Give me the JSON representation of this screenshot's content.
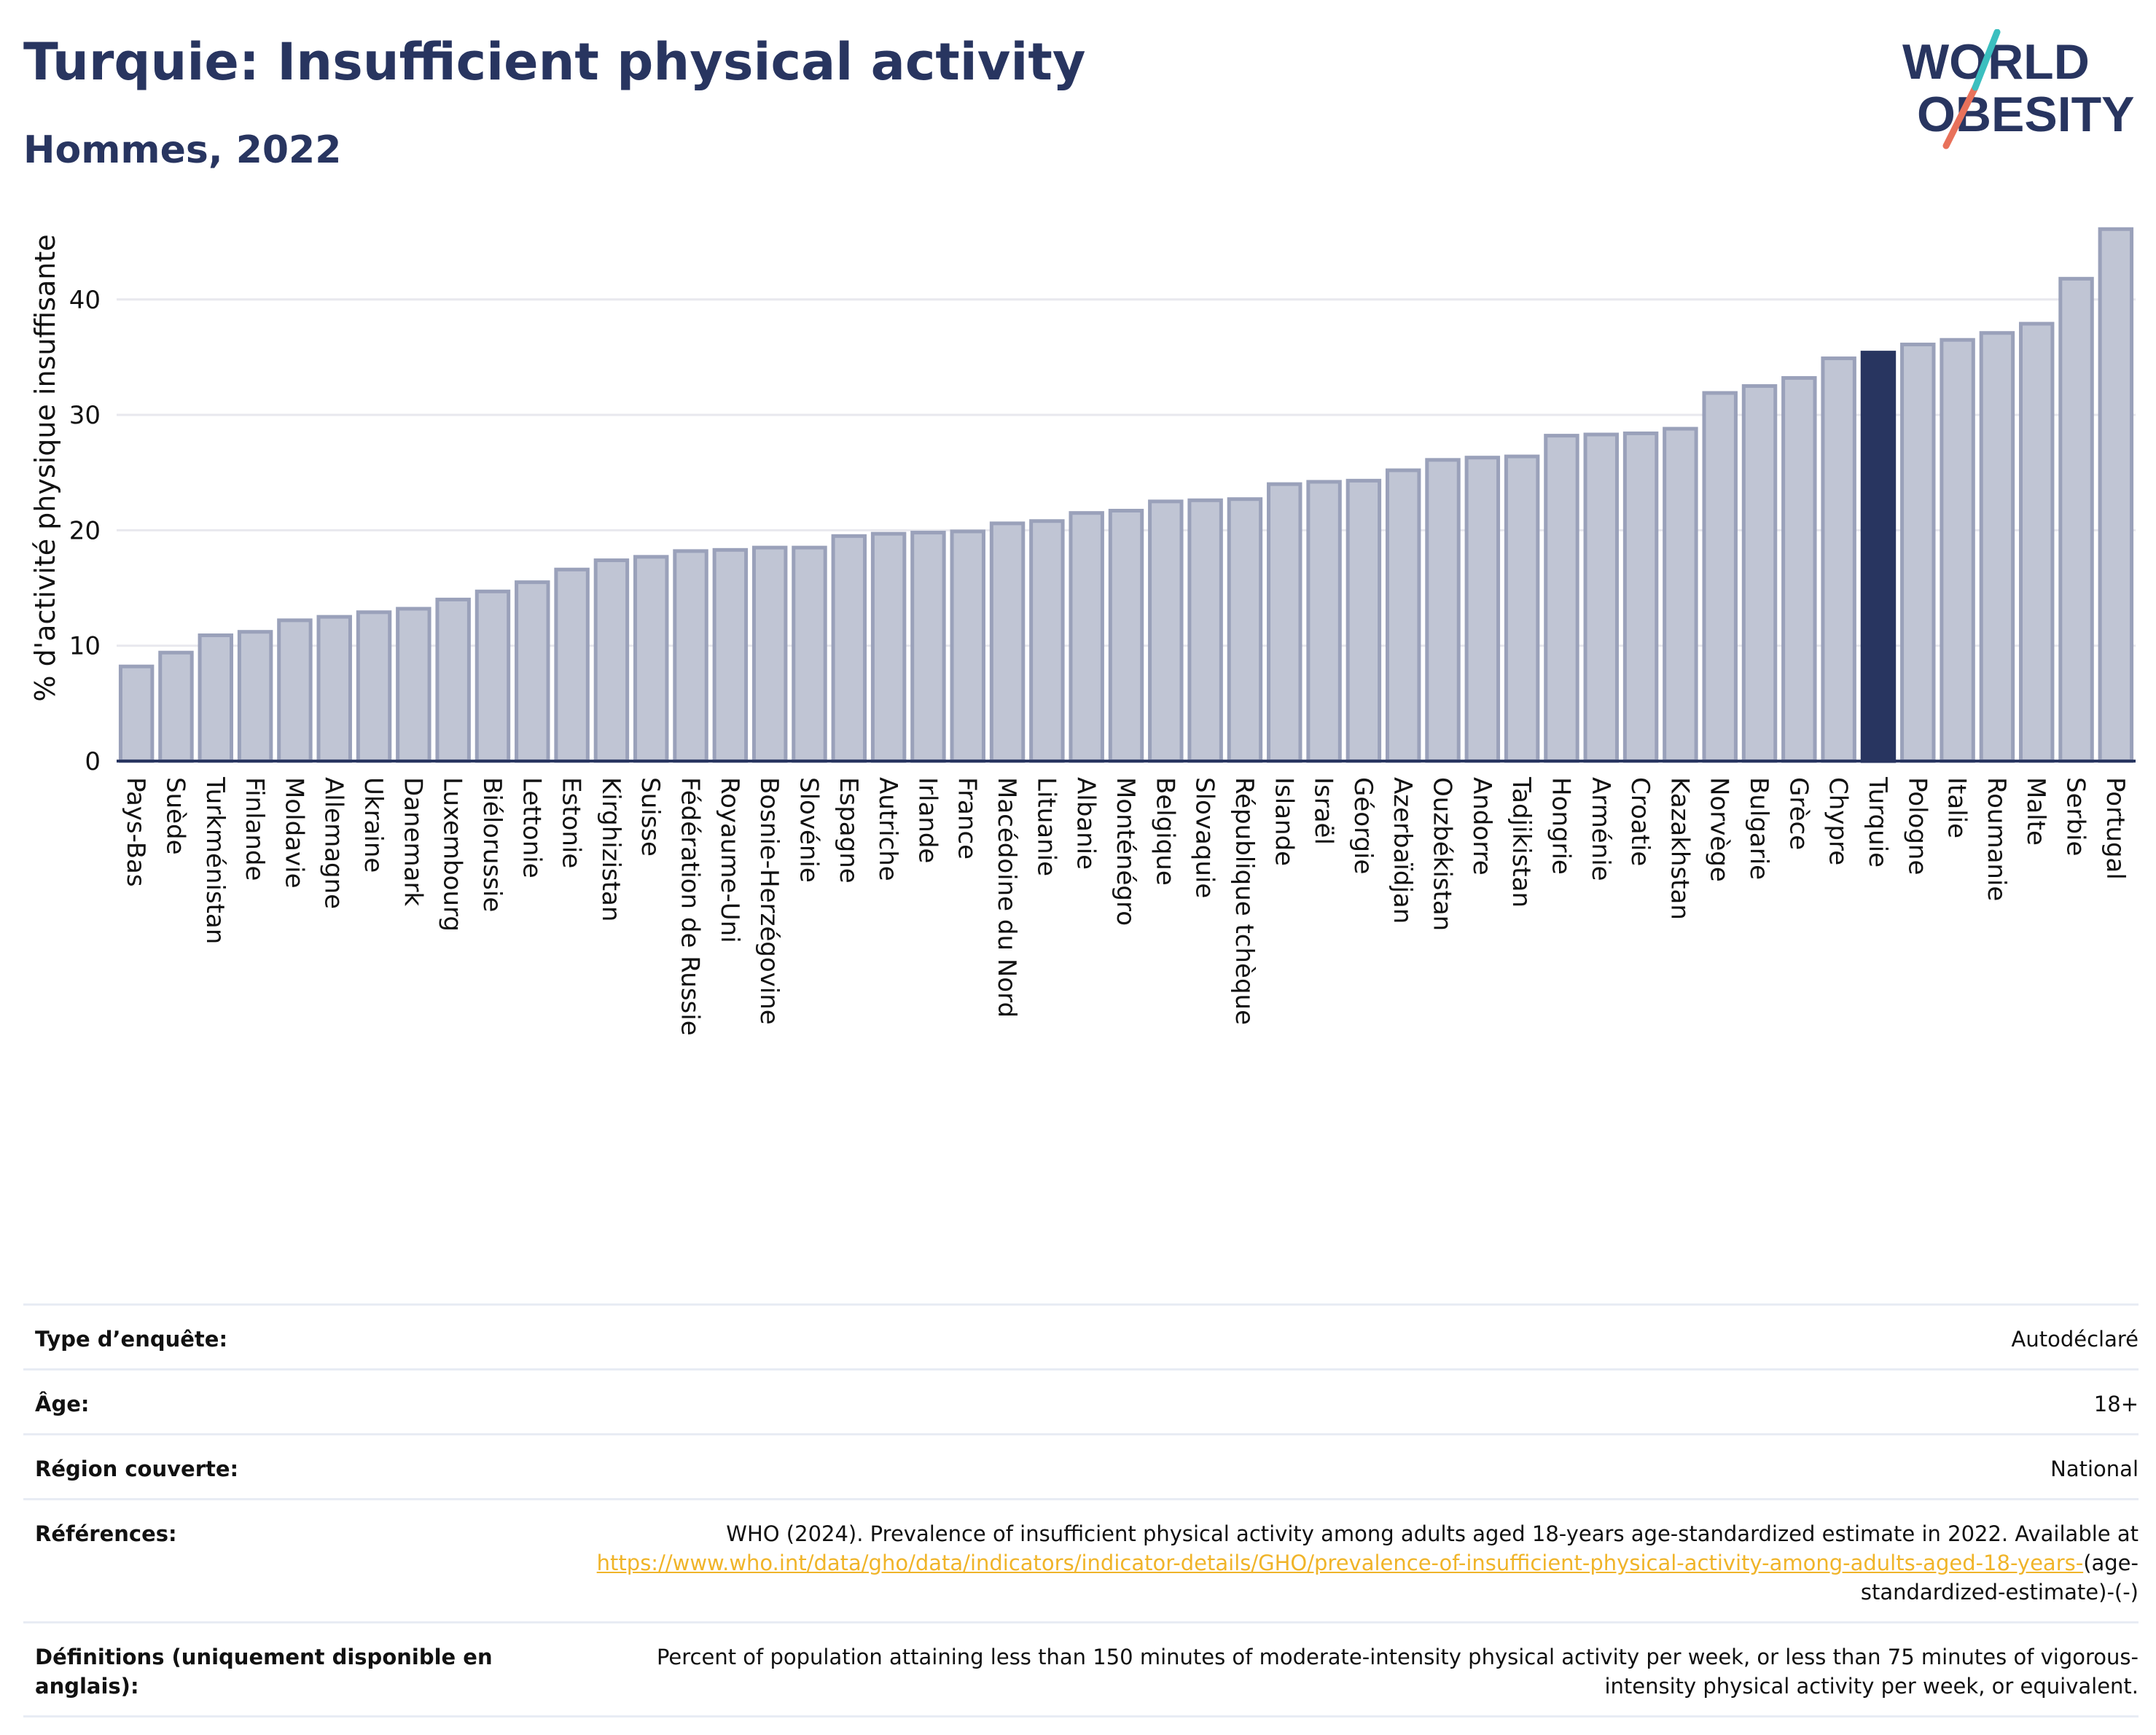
{
  "header": {
    "title": "Turquie: Insufficient physical activity",
    "subtitle": "Hommes, 2022"
  },
  "logo": {
    "line1": "WORLD",
    "line2": "OBESITY"
  },
  "colors": {
    "bar": "#c0c5d4",
    "bar_stroke": "#9aa1ba",
    "highlight": "#283560",
    "grid": "#e8e8ee",
    "axis": "#283560",
    "logo_teal": "#3bbfbf",
    "logo_coral": "#e8715a",
    "link": "#f0b429"
  },
  "chart_data": {
    "type": "bar",
    "ylabel": "% d'activité physique insuffisante",
    "ylim": [
      0,
      47
    ],
    "yticks": [
      0,
      10,
      20,
      30,
      40
    ],
    "grid": true,
    "highlight": "Turquie",
    "categories": [
      "Pays-Bas",
      "Suède",
      "Turkménistan",
      "Finlande",
      "Moldavie",
      "Allemagne",
      "Ukraine",
      "Danemark",
      "Luxembourg",
      "Biélorussie",
      "Lettonie",
      "Estonie",
      "Kirghizistan",
      "Suisse",
      "Fédération de Russie",
      "Royaume-Uni",
      "Bosnie-Herzégovine",
      "Slovénie",
      "Espagne",
      "Autriche",
      "Irlande",
      "France",
      "Macédoine du Nord",
      "Lituanie",
      "Albanie",
      "Monténégro",
      "Belgique",
      "Slovaquie",
      "République tchèque",
      "Islande",
      "Israël",
      "Géorgie",
      "Azerbaïdjan",
      "Ouzbékistan",
      "Andorre",
      "Tadjikistan",
      "Hongrie",
      "Arménie",
      "Croatie",
      "Kazakhstan",
      "Norvège",
      "Bulgarie",
      "Grèce",
      "Chypre",
      "Turquie",
      "Pologne",
      "Italie",
      "Roumanie",
      "Malte",
      "Serbie",
      "Portugal"
    ],
    "values": [
      8.2,
      9.4,
      10.9,
      11.2,
      12.2,
      12.5,
      12.9,
      13.2,
      14.0,
      14.7,
      15.5,
      16.6,
      17.4,
      17.7,
      18.2,
      18.3,
      18.5,
      18.5,
      19.5,
      19.7,
      19.8,
      19.9,
      20.6,
      20.8,
      21.5,
      21.7,
      22.5,
      22.6,
      22.7,
      24.0,
      24.2,
      24.3,
      25.2,
      26.1,
      26.3,
      26.4,
      28.2,
      28.3,
      28.4,
      28.8,
      31.9,
      32.5,
      33.2,
      34.9,
      35.4,
      36.1,
      36.5,
      37.1,
      37.9,
      41.8,
      46.1
    ]
  },
  "meta": {
    "survey_label": "Type d’enquête:",
    "survey_value": "Autodéclaré",
    "age_label": "Âge:",
    "age_value": "18+",
    "region_label": "Région couverte:",
    "region_value": "National",
    "ref_label": "Références:",
    "ref_text": "WHO (2024). Prevalence of insufficient physical activity among adults aged 18-years age-standardized estimate in 2022. Available at",
    "ref_link": "https://www.who.int/data/gho/data/indicators/indicator-details/GHO/prevalence-of-insufficient-physical-activity-among-adults-aged-18-years-",
    "ref_suffix": "(age-standardized-estimate)-(-)",
    "def_label": "Définitions (uniquement disponible en anglais):",
    "def_value": "Percent of population attaining less than 150 minutes of moderate-intensity physical activity per week, or less than 75 minutes of vigorous-intensity physical activity per week, or equivalent."
  }
}
